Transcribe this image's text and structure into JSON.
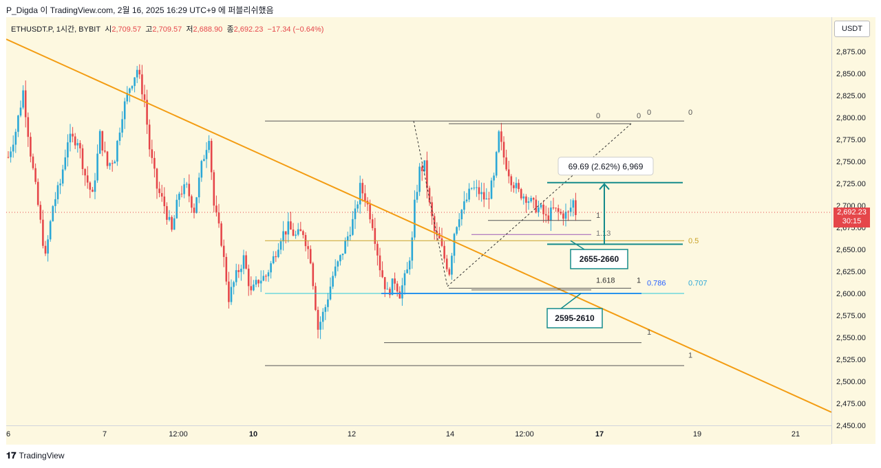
{
  "header": {
    "text": "P_Digda 이 TradingView.com, 2월 16, 2025 16:29 UTC+9 에 퍼블리쉬했음"
  },
  "symbol": {
    "name": "ETHUSDT.P, 1시간, BYBIT",
    "o_label": "시",
    "o": "2,709.57",
    "h_label": "고",
    "h": "2,709.57",
    "l_label": "저",
    "l": "2,688.90",
    "c_label": "종",
    "c": "2,692.23",
    "change": "−17.34 (−0.64%)"
  },
  "currency": "USDT",
  "last_price": {
    "price": "2,692.23",
    "countdown": "30:15"
  },
  "footer": {
    "logo": "𝟏𝟕",
    "brand": "TradingView"
  },
  "chart_data": {
    "type": "candlestick",
    "symbol": "ETHUSDT.P",
    "interval": "1시간",
    "exchange": "BYBIT",
    "y_ticks": [
      "2,875.00",
      "2,850.00",
      "2,825.00",
      "2,800.00",
      "2,775.00",
      "2,750.00",
      "2,725.00",
      "2,700.00",
      "2,675.00",
      "2,650.00",
      "2,625.00",
      "2,600.00",
      "2,575.00",
      "2,550.00",
      "2,525.00",
      "2,500.00",
      "2,475.00",
      "2,450.00"
    ],
    "x_ticks": [
      "6",
      "7",
      "12:00",
      "10",
      "12",
      "14",
      "12:00",
      "17",
      "19",
      "21"
    ],
    "ylim": [
      2450,
      2895
    ],
    "price_path": [
      [
        0,
        2755
      ],
      [
        3,
        2785
      ],
      [
        6,
        2830
      ],
      [
        9,
        2760
      ],
      [
        12,
        2700
      ],
      [
        15,
        2640
      ],
      [
        18,
        2700
      ],
      [
        21,
        2725
      ],
      [
        24,
        2775
      ],
      [
        28,
        2775
      ],
      [
        31,
        2735
      ],
      [
        34,
        2710
      ],
      [
        37,
        2780
      ],
      [
        40,
        2745
      ],
      [
        43,
        2755
      ],
      [
        46,
        2805
      ],
      [
        49,
        2835
      ],
      [
        52,
        2855
      ],
      [
        55,
        2820
      ],
      [
        57,
        2765
      ],
      [
        60,
        2720
      ],
      [
        63,
        2700
      ],
      [
        66,
        2670
      ],
      [
        69,
        2715
      ],
      [
        72,
        2720
      ],
      [
        75,
        2695
      ],
      [
        78,
        2745
      ],
      [
        81,
        2780
      ],
      [
        83,
        2700
      ],
      [
        86,
        2660
      ],
      [
        89,
        2595
      ],
      [
        92,
        2620
      ],
      [
        95,
        2640
      ],
      [
        98,
        2600
      ],
      [
        101,
        2615
      ],
      [
        104,
        2620
      ],
      [
        107,
        2640
      ],
      [
        110,
        2665
      ],
      [
        113,
        2675
      ],
      [
        116,
        2665
      ],
      [
        119,
        2670
      ],
      [
        122,
        2640
      ],
      [
        125,
        2560
      ],
      [
        128,
        2585
      ],
      [
        131,
        2620
      ],
      [
        134,
        2640
      ],
      [
        137,
        2665
      ],
      [
        140,
        2690
      ],
      [
        142,
        2720
      ],
      [
        144,
        2710
      ],
      [
        147,
        2680
      ],
      [
        150,
        2630
      ],
      [
        153,
        2600
      ],
      [
        156,
        2615
      ],
      [
        158,
        2600
      ],
      [
        161,
        2625
      ],
      [
        163,
        2660
      ],
      [
        164,
        2700
      ],
      [
        166,
        2740
      ],
      [
        168,
        2745
      ],
      [
        170,
        2700
      ],
      [
        172,
        2670
      ],
      [
        174,
        2660
      ],
      [
        176,
        2640
      ],
      [
        178,
        2625
      ],
      [
        180,
        2670
      ],
      [
        182,
        2690
      ],
      [
        184,
        2700
      ],
      [
        187,
        2720
      ],
      [
        190,
        2715
      ],
      [
        193,
        2705
      ],
      [
        196,
        2730
      ],
      [
        198,
        2780
      ],
      [
        200,
        2755
      ],
      [
        203,
        2730
      ],
      [
        206,
        2715
      ],
      [
        209,
        2710
      ],
      [
        212,
        2700
      ],
      [
        215,
        2695
      ],
      [
        217,
        2685
      ],
      [
        220,
        2695
      ],
      [
        223,
        2690
      ],
      [
        226,
        2690
      ],
      [
        228,
        2705
      ],
      [
        229,
        2692
      ]
    ],
    "fib_levels": [
      {
        "label": "0",
        "price": 2796
      },
      {
        "label": "0.5",
        "price": 2660
      },
      {
        "label": "1",
        "price": 2683
      },
      {
        "label": "1.13",
        "price": 2667
      },
      {
        "label": "1.618",
        "price": 2606
      },
      {
        "label": "0.786",
        "price": 2600
      },
      {
        "label": "0.707",
        "price": 2600
      },
      {
        "label": "1",
        "price": 2544
      },
      {
        "label": "1",
        "price": 2518
      }
    ],
    "measure": {
      "text": "69.69 (2.62%) 6,969",
      "from": 2656,
      "to": 2726
    },
    "zones": [
      {
        "label": "2655-2660",
        "low": 2655,
        "high": 2660
      },
      {
        "label": "2595-2610",
        "low": 2595,
        "high": 2610
      }
    ],
    "trendline": {
      "from_price": 2889,
      "to_price": 2465
    }
  }
}
